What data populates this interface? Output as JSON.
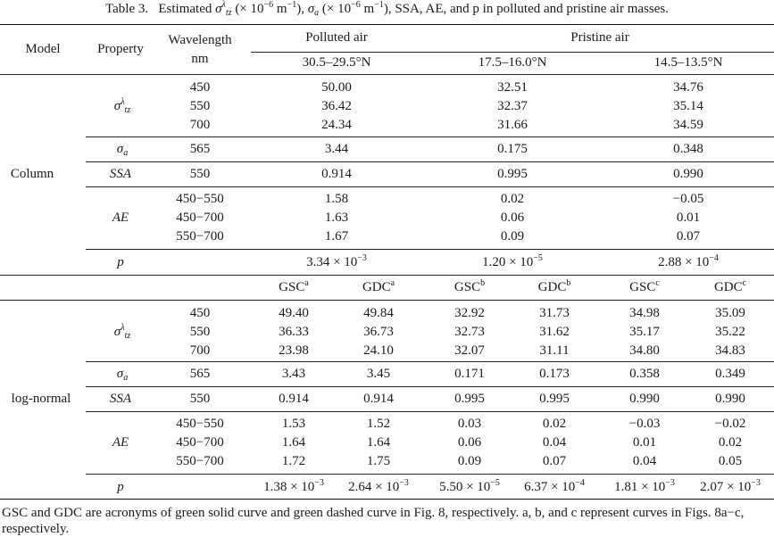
{
  "caption": {
    "label": "Table 3.",
    "text_pre": "Estimated",
    "sigma_unit": "(× 10",
    "unit_exp": "−6",
    "unit_tail": " m",
    "unit_inv": "−1",
    "sigma_a_unit": "(× 10",
    "text_post": "SSA, AE, and p in polluted and pristine air masses."
  },
  "header": {
    "model": "Model",
    "property": "Property",
    "wavelength": "Wavelength",
    "wavelength_unit": "nm",
    "polluted": "Polluted air",
    "pristine": "Pristine air",
    "lat1": "30.5–29.5°N",
    "lat2": "17.5–16.0°N",
    "lat3": "14.5–13.5°N"
  },
  "symbols": {
    "sigma": "σ",
    "sigma_sup": "λ",
    "sigma_sub": "tz",
    "sigma_a_sub": "a",
    "ssa": "SSA",
    "ae": "AE",
    "p": "p"
  },
  "column": {
    "model": "Column",
    "sigma_wl": [
      "450",
      "550",
      "700"
    ],
    "sigma_vals": [
      [
        "50.00",
        "32.51",
        "34.76"
      ],
      [
        "36.42",
        "32.37",
        "35.14"
      ],
      [
        "24.34",
        "31.66",
        "34.59"
      ]
    ],
    "sa_wl": "565",
    "sa_vals": [
      "3.44",
      "0.175",
      "0.348"
    ],
    "ssa_wl": "550",
    "ssa_vals": [
      "0.914",
      "0.995",
      "0.990"
    ],
    "ae_wl": [
      "450−550",
      "450−700",
      "550−700"
    ],
    "ae_vals": [
      [
        "1.58",
        "0.02",
        "−0.05"
      ],
      [
        "1.63",
        "0.06",
        "0.01"
      ],
      [
        "1.67",
        "0.09",
        "0.07"
      ]
    ],
    "p_vals": [
      {
        "m": "3.34 × 10",
        "e": "−3"
      },
      {
        "m": "1.20 × 10",
        "e": "−5"
      },
      {
        "m": "2.88 × 10",
        "e": "−4"
      }
    ]
  },
  "lognormal": {
    "model": "log-normal",
    "sub_headers": [
      {
        "t": "GSC",
        "s": "a"
      },
      {
        "t": "GDC",
        "s": "a"
      },
      {
        "t": "GSC",
        "s": "b"
      },
      {
        "t": "GDC",
        "s": "b"
      },
      {
        "t": "GSC",
        "s": "c"
      },
      {
        "t": "GDC",
        "s": "c"
      }
    ],
    "sigma_wl": [
      "450",
      "550",
      "700"
    ],
    "sigma_vals": [
      [
        "49.40",
        "49.84",
        "32.92",
        "31.73",
        "34.98",
        "35.09"
      ],
      [
        "36.33",
        "36.73",
        "32.73",
        "31.62",
        "35.17",
        "35.22"
      ],
      [
        "23.98",
        "24.10",
        "32.07",
        "31.11",
        "34.80",
        "34.83"
      ]
    ],
    "sa_wl": "565",
    "sa_vals": [
      "3.43",
      "3.45",
      "0.171",
      "0.173",
      "0.358",
      "0.349"
    ],
    "ssa_wl": "550",
    "ssa_vals": [
      "0.914",
      "0.914",
      "0.995",
      "0.995",
      "0.990",
      "0.990"
    ],
    "ae_wl": [
      "450−550",
      "450−700",
      "550−700"
    ],
    "ae_vals": [
      [
        "1.53",
        "1.52",
        "0.03",
        "0.02",
        "−0.03",
        "−0.02"
      ],
      [
        "1.64",
        "1.64",
        "0.06",
        "0.04",
        "0.01",
        "0.02"
      ],
      [
        "1.72",
        "1.75",
        "0.09",
        "0.07",
        "0.04",
        "0.05"
      ]
    ],
    "p_vals": [
      {
        "m": "1.38 × 10",
        "e": "−3"
      },
      {
        "m": "2.64 × 10",
        "e": "−3"
      },
      {
        "m": "5.50 × 10",
        "e": "−5"
      },
      {
        "m": "6.37 × 10",
        "e": "−4"
      },
      {
        "m": "1.81 × 10",
        "e": "−3"
      },
      {
        "m": "2.07 × 10",
        "e": "−3"
      }
    ]
  },
  "footnote": "GSC and GDC are acronyms of green solid curve and green dashed curve in Fig. 8, respectively. a, b, and c represent curves in Figs. 8a−c, respectively."
}
